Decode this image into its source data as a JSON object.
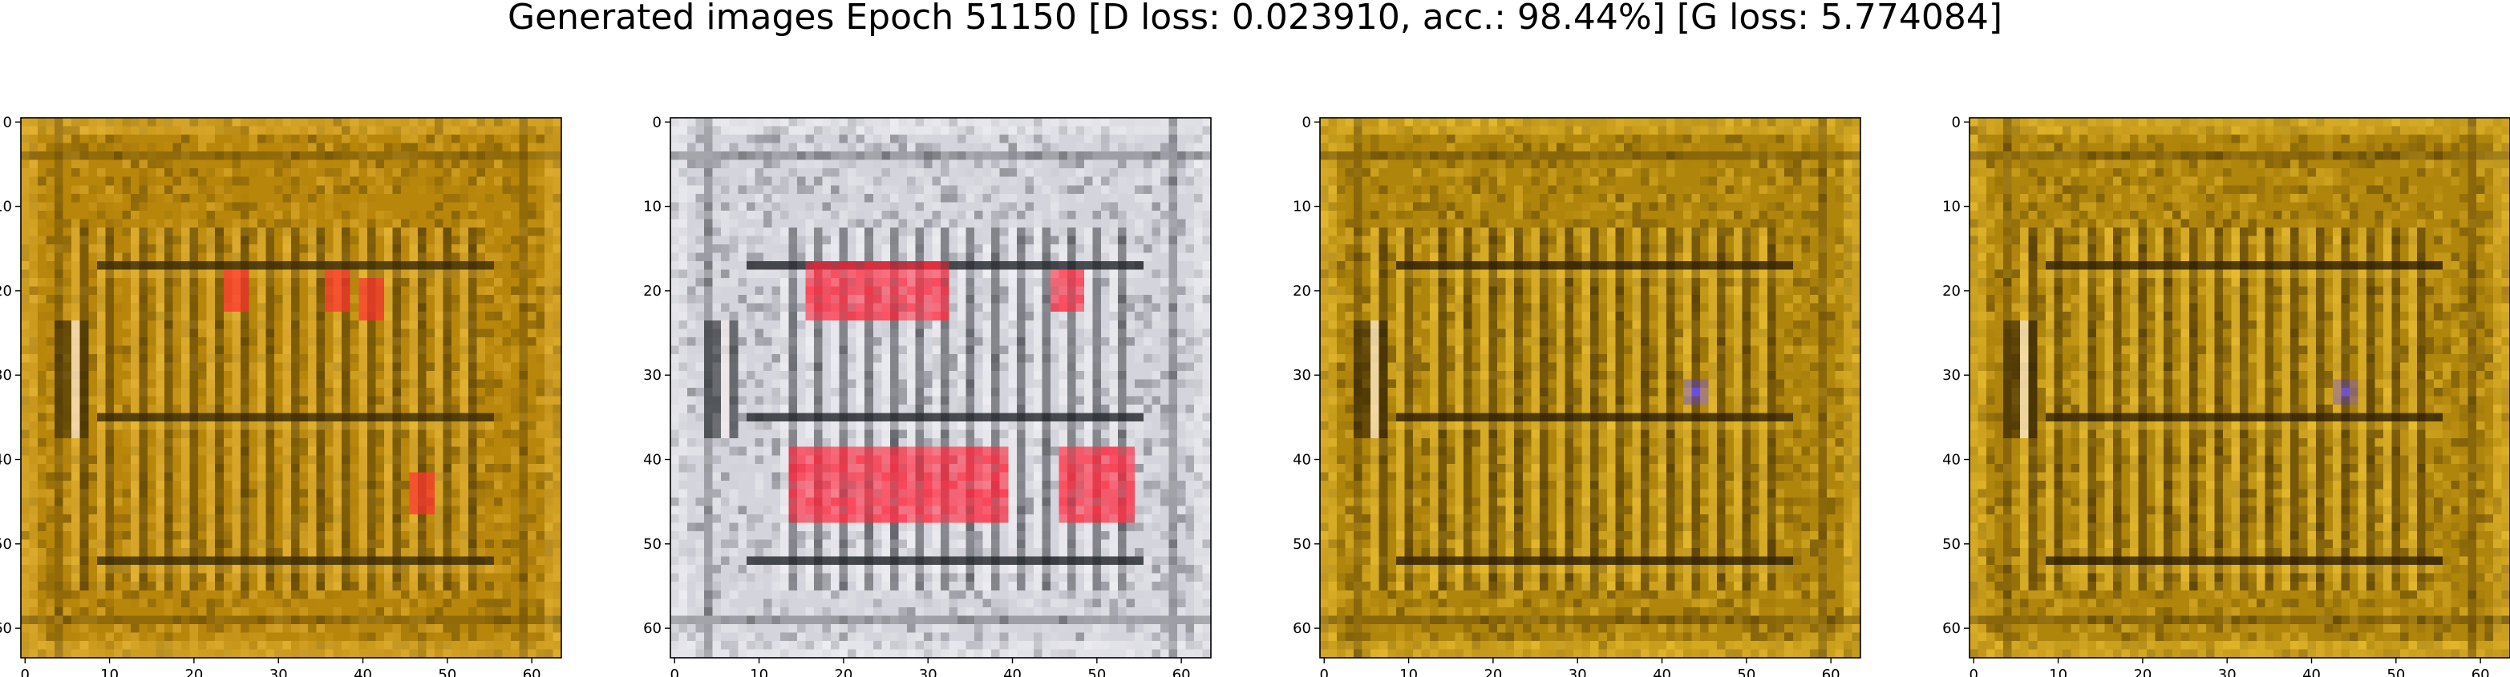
{
  "figure": {
    "title": "Generated images Epoch 51150 [D loss: 0.023910, acc.: 98.44%] [G loss: 5.774084]"
  },
  "chart_data": [
    {
      "type": "heatmap",
      "description_type": "image",
      "x_ticks": [
        0,
        10,
        20,
        30,
        40,
        50,
        60
      ],
      "y_ticks": [
        0,
        10,
        20,
        30,
        40,
        50,
        60
      ],
      "xlim": [
        -0.5,
        63.5
      ],
      "ylim": [
        63.5,
        -0.5
      ],
      "grid": false,
      "palette": {
        "base": "#b8860b",
        "dark": "#3a2a05",
        "light": "#f0c040",
        "accent": "#ff3030"
      },
      "features": {
        "columns_x": [
          6,
          9,
          13,
          16,
          19,
          22,
          25,
          28,
          31,
          34,
          37,
          40,
          43,
          46,
          49,
          52
        ],
        "rows_y": [
          17,
          35,
          52
        ],
        "red_spots": [
          [
            25,
            20
          ],
          [
            37,
            20
          ],
          [
            41,
            21
          ],
          [
            47,
            44
          ]
        ]
      }
    },
    {
      "type": "heatmap",
      "description_type": "image",
      "x_ticks": [
        0,
        10,
        20,
        30,
        40,
        50,
        60
      ],
      "y_ticks": [
        0,
        10,
        20,
        30,
        40,
        50,
        60
      ],
      "xlim": [
        -0.5,
        63.5
      ],
      "ylim": [
        63.5,
        -0.5
      ],
      "grid": false,
      "palette": {
        "base": "#d4d4dc",
        "dark": "#202428",
        "light": "#f4f4f8",
        "accent": "#ff2a40"
      },
      "features": {
        "columns_x": [
          13,
          16,
          19,
          22,
          25,
          28,
          31,
          34,
          37,
          40,
          43,
          46,
          49,
          52
        ],
        "rows_y": [
          17,
          35,
          52
        ],
        "red_bands": [
          [
            16,
            20,
            32,
            3
          ],
          [
            45,
            20,
            48,
            2
          ],
          [
            14,
            43,
            39,
            4
          ],
          [
            46,
            43,
            54,
            4
          ]
        ]
      }
    },
    {
      "type": "heatmap",
      "description_type": "image",
      "x_ticks": [
        0,
        10,
        20,
        30,
        40,
        50,
        60
      ],
      "y_ticks": [
        0,
        10,
        20,
        30,
        40,
        50,
        60
      ],
      "xlim": [
        -0.5,
        63.5
      ],
      "ylim": [
        63.5,
        -0.5
      ],
      "grid": false,
      "palette": {
        "base": "#b0850c",
        "dark": "#302004",
        "light": "#f4c838",
        "accent": "#6a4cff"
      },
      "features": {
        "columns_x": [
          6,
          9,
          13,
          16,
          19,
          22,
          25,
          28,
          31,
          34,
          37,
          40,
          43,
          46,
          49,
          52
        ],
        "rows_y": [
          17,
          35,
          52
        ],
        "blue_spots": [
          [
            44,
            32
          ]
        ]
      }
    },
    {
      "type": "heatmap",
      "description_type": "image",
      "x_ticks": [
        0,
        10,
        20,
        30,
        40,
        50,
        60
      ],
      "y_ticks": [
        0,
        10,
        20,
        30,
        40,
        50,
        60
      ],
      "xlim": [
        -0.5,
        63.5
      ],
      "ylim": [
        63.5,
        -0.5
      ],
      "grid": false,
      "palette": {
        "base": "#b0850c",
        "dark": "#302004",
        "light": "#f4c838",
        "accent": "#7050e0"
      },
      "features": {
        "columns_x": [
          6,
          9,
          13,
          16,
          19,
          22,
          25,
          28,
          31,
          34,
          37,
          40,
          43,
          46,
          49,
          52
        ],
        "rows_y": [
          17,
          35,
          52
        ],
        "blue_spots": [
          [
            44,
            32
          ]
        ]
      }
    }
  ]
}
